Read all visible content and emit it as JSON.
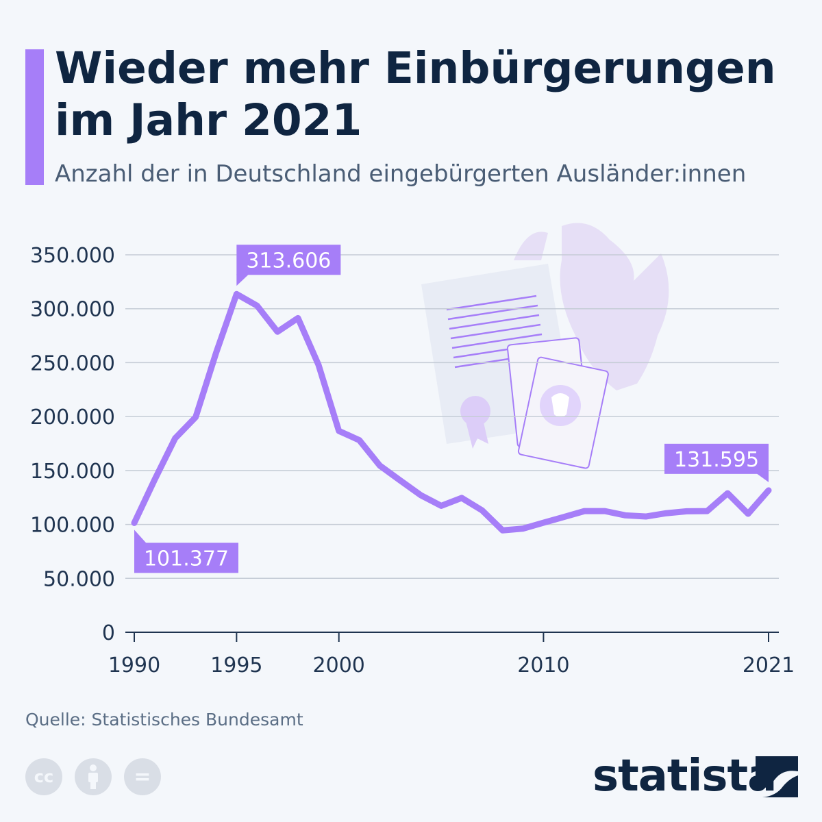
{
  "title": "Wieder mehr Einbürgerungen im Jahr 2021",
  "subtitle": "Anzahl der in Deutschland eingebürgerten Ausländer:innen",
  "source": "Quelle: Statistisches Bundesamt",
  "brand": "statista",
  "license_icons": [
    "cc-icon",
    "attribution-icon",
    "no-derivatives-icon"
  ],
  "license_labels": {
    "cc": "cc",
    "nd": "="
  },
  "colors": {
    "line": "#a67ef8",
    "title": "#0f2541",
    "grid": "#c5ccd6"
  },
  "chart_data": {
    "type": "line",
    "title": "Wieder mehr Einbürgerungen im Jahr 2021",
    "xlabel": "",
    "ylabel": "",
    "ylim": [
      0,
      350000
    ],
    "xlim": [
      1990,
      2021
    ],
    "grid": true,
    "yticks": [
      0,
      50000,
      100000,
      150000,
      200000,
      250000,
      300000,
      350000
    ],
    "ytick_labels": [
      "0",
      "50.000",
      "100.000",
      "150.000",
      "200.000",
      "250.000",
      "300.000",
      "350.000"
    ],
    "xticks": [
      1990,
      1995,
      2000,
      2010,
      2021
    ],
    "xtick_labels": [
      "1990",
      "1995",
      "2000",
      "2010",
      "2021"
    ],
    "series": [
      {
        "name": "Einbürgerungen",
        "x": [
          1990,
          1991,
          1992,
          1993,
          1994,
          1995,
          1996,
          1997,
          1998,
          1999,
          2000,
          2001,
          2002,
          2003,
          2004,
          2005,
          2006,
          2007,
          2008,
          2009,
          2010,
          2011,
          2012,
          2013,
          2014,
          2015,
          2016,
          2017,
          2018,
          2019,
          2020,
          2021
        ],
        "values": [
          101377,
          141630,
          179904,
          199443,
          259170,
          313606,
          302830,
          278662,
          291331,
          248206,
          186688,
          178098,
          154547,
          140731,
          127153,
          117241,
          124566,
          113030,
          94470,
          96122,
          101570,
          106897,
          112348,
          112353,
          108422,
          107317,
          110383,
          112211,
          112340,
          128905,
          109880,
          131595
        ]
      }
    ],
    "annotations": [
      {
        "x": 1990,
        "label": "101.377",
        "position": "below"
      },
      {
        "x": 1995,
        "label": "313.606",
        "position": "above"
      },
      {
        "x": 2021,
        "label": "131.595",
        "position": "above-left"
      }
    ]
  }
}
